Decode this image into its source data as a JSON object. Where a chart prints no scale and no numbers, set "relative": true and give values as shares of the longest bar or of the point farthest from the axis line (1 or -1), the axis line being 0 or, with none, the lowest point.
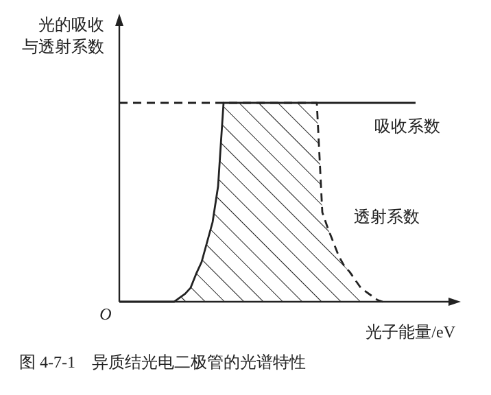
{
  "chart_data": {
    "type": "line",
    "relative": true,
    "ylabel": "光的吸收与透射系数",
    "xlabel": "光子能量/eV",
    "annotations": [
      "O",
      "图 4-7-1　异质结光电二极管的光谱特性"
    ],
    "categories": [
      null,
      null,
      null,
      null,
      null,
      null,
      null,
      null,
      null,
      null,
      null,
      null,
      null,
      null,
      null,
      null,
      null,
      null,
      null,
      null,
      null,
      null,
      null,
      null,
      null,
      null,
      null,
      null,
      null,
      null,
      null,
      null,
      null,
      null,
      null,
      null,
      null,
      null,
      null,
      null,
      null,
      null,
      null,
      null,
      null,
      null,
      null,
      null,
      null,
      null,
      null,
      null,
      null,
      null,
      null
    ],
    "series": [
      {
        "name": "吸收系数",
        "color": "#222222",
        "line_style": "solid",
        "values": [
          0,
          0,
          0,
          0,
          0,
          0,
          0,
          0,
          0,
          0,
          0,
          0.02,
          0.04,
          0.07,
          0.14,
          0.2,
          0.3,
          0.4,
          0.58,
          1,
          1,
          1,
          1,
          1,
          1,
          1,
          1,
          1,
          1,
          1,
          1,
          1,
          1,
          1,
          1,
          1,
          1,
          1,
          1,
          1,
          1,
          1,
          1,
          1,
          1,
          1,
          1,
          1,
          1,
          1,
          1,
          1,
          1,
          1,
          1
        ]
      },
      {
        "name": "透射系数",
        "color": "#222222",
        "line_style": "dashed",
        "values": [
          1,
          1,
          1,
          1,
          1,
          1,
          1,
          1,
          1,
          1,
          1,
          1,
          1,
          1,
          1,
          1,
          1,
          1,
          1,
          1,
          1,
          1,
          1,
          1,
          1,
          1,
          1,
          1,
          1,
          1,
          1,
          1,
          1,
          1,
          1,
          1,
          1,
          0.45,
          0.37,
          0.3,
          0.23,
          0.18,
          0.15,
          0.11,
          0.07,
          0.05,
          0.03,
          0.01,
          0,
          null,
          null,
          null,
          null,
          null,
          null
        ],
        "lower": [
          null,
          null,
          null,
          null,
          null,
          null,
          null,
          null,
          null,
          null,
          0,
          0,
          0,
          0,
          0,
          0,
          0,
          0,
          0,
          0,
          0,
          0,
          0,
          0,
          0,
          0,
          0,
          0,
          0,
          0,
          0,
          0,
          0,
          0,
          0,
          0,
          0,
          0,
          0,
          0,
          0,
          0,
          0,
          0,
          0,
          0,
          0,
          0,
          0,
          null,
          null,
          null,
          null,
          null,
          null
        ],
        "upper": [
          null,
          null,
          null,
          null,
          null,
          null,
          null,
          null,
          null,
          null,
          0,
          0.02,
          0.04,
          0.07,
          0.14,
          0.2,
          0.3,
          0.4,
          0.58,
          1,
          1,
          1,
          1,
          1,
          1,
          1,
          1,
          1,
          1,
          1,
          1,
          1,
          1,
          1,
          1,
          1,
          1,
          0.45,
          0.37,
          0.3,
          0.23,
          0.18,
          0.15,
          0.11,
          0.07,
          0.05,
          0.03,
          0.01,
          0,
          null,
          null,
          null,
          null,
          null,
          null
        ]
      }
    ]
  }
}
